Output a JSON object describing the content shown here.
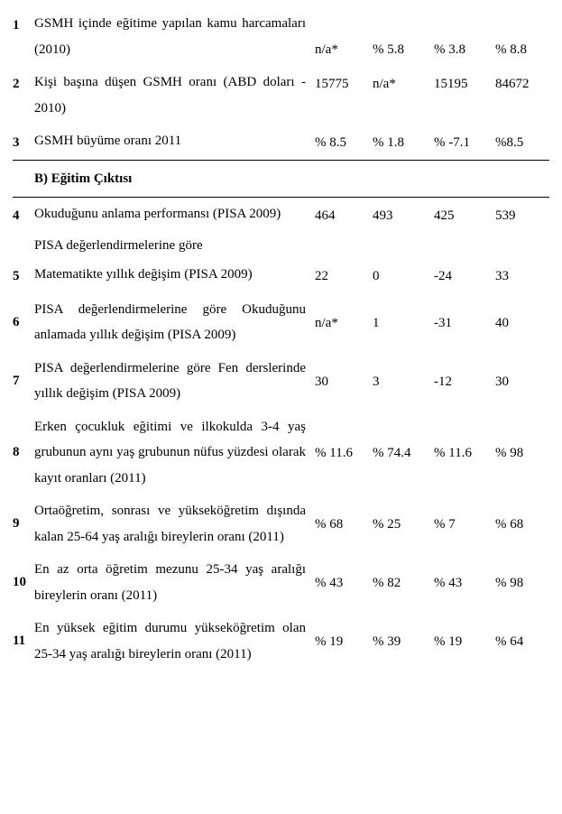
{
  "rows": [
    {
      "num": "1",
      "desc": "GSMH içinde eğitime yapılan kamu harcamaları (2010)",
      "v1": "n/a*",
      "v2": "% 5.8",
      "v3": "% 3.8",
      "v4": "% 8.8",
      "align": "bottom"
    },
    {
      "num": "2",
      "desc": "Kişi başına düşen GSMH oranı (ABD doları - 2010)",
      "v1": "15775",
      "v2": "n/a*",
      "v3": "15195",
      "v4": "84672",
      "align": "top"
    },
    {
      "num": "3",
      "desc": "GSMH büyüme oranı 2011",
      "v1": "% 8.5",
      "v2": "% 1.8",
      "v3": "% -7.1",
      "v4": "%8.5",
      "align": "top"
    }
  ],
  "section_b": "B)  Eğitim Çıktısı",
  "rows_b": [
    {
      "num": "4",
      "desc": "Okuduğunu anlama performansı (PISA 2009)",
      "v1": "464",
      "v2": "493",
      "v3": "425",
      "v4": "539",
      "align": "top"
    }
  ],
  "pisa_pre": "PISA değerlendirmelerine göre",
  "rows_c": [
    {
      "num": "5",
      "desc": "Matematikte yıllık değişim (PISA 2009)",
      "v1": "22",
      "v2": "0",
      "v3": "-24",
      "v4": "33",
      "align": "top"
    },
    {
      "num": "6",
      "desc": "PISA değerlendirmelerine göre Okuduğunu anlamada yıllık değişim (PISA 2009)",
      "v1": "n/a*",
      "v2": "1",
      "v3": "-31",
      "v4": "40",
      "align": "mid"
    },
    {
      "num": "7",
      "desc": "PISA değerlendirmelerine göre Fen derslerinde yıllık değişim (PISA 2009)",
      "v1": "30",
      "v2": "3",
      "v3": "-12",
      "v4": "30",
      "align": "mid"
    },
    {
      "num": "8",
      "desc": "Erken çocukluk eğitimi ve ilkokulda 3-4 yaş grubunun aynı yaş grubunun nüfus yüzdesi olarak kayıt oranları (2011)",
      "v1": "% 11.6",
      "v2": "% 74.4",
      "v3": "% 11.6",
      "v4": "% 98",
      "align": "mid"
    },
    {
      "num": "9",
      "desc": "Ortaöğretim, sonrası ve yükseköğretim dışında kalan 25-64 yaş aralığı bireylerin oranı (2011)",
      "v1": "% 68",
      "v2": "% 25",
      "v3": "% 7",
      "v4": "% 68",
      "align": "mid"
    },
    {
      "num": "10",
      "desc": "En az orta öğretim mezunu 25-34 yaş aralığı bireylerin oranı (2011)",
      "v1": "% 43",
      "v2": "% 82",
      "v3": "% 43",
      "v4": "% 98",
      "align": "mid"
    },
    {
      "num": "11",
      "desc": "En yüksek eğitim durumu yükseköğretim olan 25-34 yaş aralığı bireylerin oranı (2011)",
      "v1": "% 19",
      "v2": "% 39",
      "v3": "% 19",
      "v4": "% 64",
      "align": "mid"
    }
  ]
}
